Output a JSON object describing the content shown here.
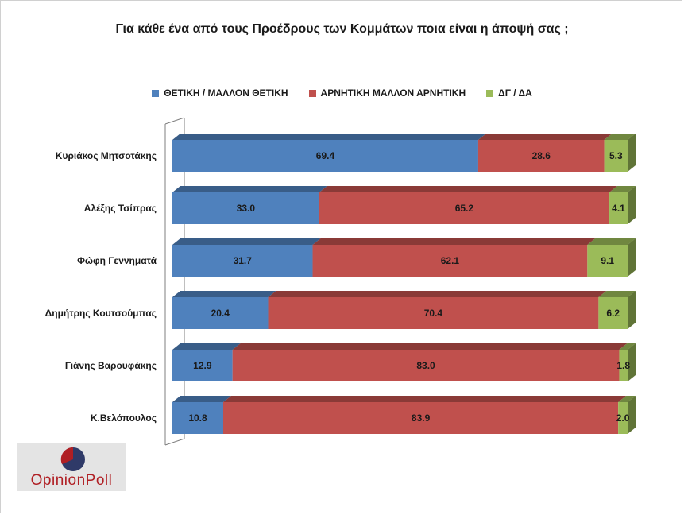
{
  "chart_data": {
    "type": "bar",
    "orientation": "horizontal",
    "stacked": true,
    "title": "Για κάθε ένα από τους Προέδρους των Κομμάτων ποια είναι η άποψή σας ;",
    "categories": [
      "Κυριάκος Μητσοτάκης",
      "Αλέξης Τσίπρας",
      "Φώφη Γεννηματά",
      "Δημήτρης Κουτσούμπας",
      "Γιάνης Βαρουφάκης",
      "Κ.Βελόπουλος"
    ],
    "series": [
      {
        "name": "ΘΕΤΙΚΗ / ΜΑΛΛΟΝ ΘΕΤΙΚΗ",
        "color": "#4f81bd",
        "values": [
          69.4,
          33.0,
          31.7,
          20.4,
          12.9,
          10.8
        ]
      },
      {
        "name": "ΑΡΝΗΤΙΚΗ ΜΑΛΛΟΝ ΑΡΝΗΤΙΚΗ",
        "color": "#c0504d",
        "values": [
          28.6,
          65.2,
          62.1,
          70.4,
          83.0,
          83.9
        ]
      },
      {
        "name": "ΔΓ / ΔΑ",
        "color": "#9bbb59",
        "values": [
          5.3,
          4.1,
          9.1,
          6.2,
          1.8,
          2.0
        ]
      }
    ],
    "legend_position": "top",
    "grid": false,
    "style": "3d"
  },
  "logo": {
    "text": "OpinionPoll"
  }
}
